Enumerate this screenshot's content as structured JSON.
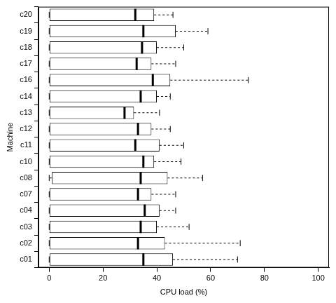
{
  "chart_data": {
    "type": "boxplot",
    "orientation": "horizontal",
    "xlabel": "CPU load (%)",
    "ylabel": "Machine",
    "categories": [
      "c01",
      "c02",
      "c03",
      "c04",
      "c07",
      "c08",
      "c10",
      "c11",
      "c12",
      "c13",
      "c14",
      "c16",
      "c17",
      "c18",
      "c19",
      "c20"
    ],
    "min": [
      0,
      0,
      0,
      0,
      0,
      0,
      0,
      0,
      0,
      0,
      0,
      0,
      0,
      0,
      0,
      0
    ],
    "q1": [
      0,
      0,
      0,
      0,
      0,
      1,
      0,
      0,
      0,
      0,
      0,
      0,
      0,
      0,
      0,
      0
    ],
    "median": [
      35,
      33,
      34,
      35.5,
      33,
      34,
      35,
      32,
      33,
      28,
      34,
      38.5,
      32.5,
      34.5,
      35,
      32
    ],
    "q3": [
      46,
      43,
      40,
      41,
      38,
      44,
      39,
      41,
      38,
      31.5,
      40,
      45,
      38,
      40,
      47,
      39
    ],
    "max": [
      70,
      71,
      52,
      47,
      47,
      57,
      49,
      50,
      45,
      41,
      45,
      74,
      47,
      50,
      59,
      46
    ],
    "color": "#ffffff",
    "xlim": [
      -4,
      104
    ],
    "xticks": [
      0,
      20,
      40,
      60,
      80,
      100
    ],
    "grid": false
  }
}
